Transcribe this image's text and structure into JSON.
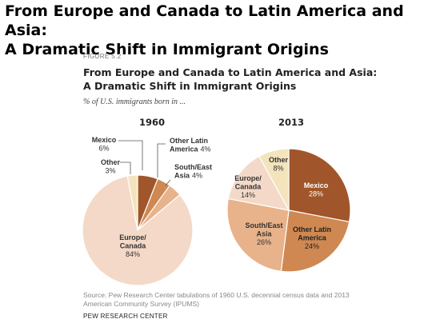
{
  "page": {
    "title_line1": "From Europe and Canada to Latin America and Asia:",
    "title_line2": "A Dramatic Shift in Immigrant Origins"
  },
  "figure": {
    "label": "FIGURE 5.2",
    "title_line1": "From Europe and Canada to Latin America and Asia:",
    "title_line2": "A Dramatic Shift in Immigrant Origins",
    "subtitle": "% of U.S. immigrants born in ...",
    "source_line1": "Source: Pew Research Center tabulations of 1960 U.S. decennial census data and 2013",
    "source_line2": "American Community Survey (IPUMS)",
    "organization": "PEW RESEARCH CENTER"
  },
  "chart_data": [
    {
      "type": "pie",
      "title": "1960",
      "slices": [
        {
          "label": "Mexico",
          "value": 6,
          "display": "6%",
          "color": "#a0562a"
        },
        {
          "label": "Other Latin America",
          "value": 4,
          "display": "4%",
          "color": "#cf8852"
        },
        {
          "label": "South/East Asia",
          "value": 4,
          "display": "4%",
          "color": "#e8b28a"
        },
        {
          "label": "Europe/Canada",
          "value": 84,
          "display": "84%",
          "color": "#f4d9c8"
        },
        {
          "label": "Other",
          "value": 3,
          "display": "3%",
          "color": "#f3e4bd"
        }
      ]
    },
    {
      "type": "pie",
      "title": "2013",
      "slices": [
        {
          "label": "Mexico",
          "value": 28,
          "display": "28%",
          "color": "#a0562a"
        },
        {
          "label": "Other Latin America",
          "value": 24,
          "display": "24%",
          "color": "#cf8852"
        },
        {
          "label": "South/East Asia",
          "value": 26,
          "display": "26%",
          "color": "#e8b28a"
        },
        {
          "label": "Europe/Canada",
          "value": 14,
          "display": "14%",
          "color": "#f4d9c8"
        },
        {
          "label": "Other",
          "value": 8,
          "display": "8%",
          "color": "#f3e4bd"
        }
      ]
    }
  ]
}
